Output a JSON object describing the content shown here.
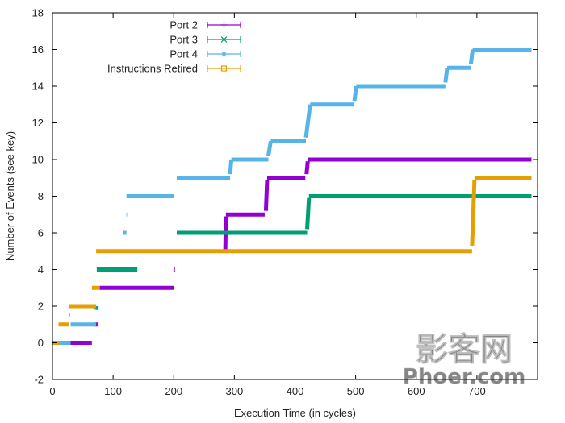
{
  "chart_data": {
    "type": "line",
    "xlabel": "Execution Time (in cycles)",
    "ylabel": "Number of Events (see key)",
    "xlim": [
      0,
      800
    ],
    "ylim": [
      -2,
      18
    ],
    "xticks": [
      0,
      100,
      200,
      300,
      400,
      500,
      600,
      700
    ],
    "yticks": [
      -2,
      0,
      2,
      4,
      6,
      8,
      10,
      12,
      14,
      16,
      18
    ],
    "grid": false,
    "legend_position": "top-center",
    "series": [
      {
        "name": "Port 2",
        "color": "#9400d3",
        "marker": "plus",
        "segments": [
          [
            [
              28,
              0
            ],
            [
              65,
              0
            ]
          ],
          [
            [
              68,
              1
            ],
            [
              75,
              1
            ]
          ],
          [
            [
              78,
              3
            ],
            [
              200,
              3
            ]
          ],
          [
            [
              200,
              4
            ],
            [
              202,
              4
            ]
          ],
          [
            [
              285,
              5
            ],
            [
              286,
              6.9
            ]
          ],
          [
            [
              286,
              7
            ],
            [
              350,
              7
            ]
          ],
          [
            [
              352,
              7.2
            ],
            [
              354,
              8.9
            ]
          ],
          [
            [
              354,
              9
            ],
            [
              417,
              9
            ]
          ],
          [
            [
              419,
              9.2
            ],
            [
              421,
              9.9
            ]
          ],
          [
            [
              421,
              10
            ],
            [
              790,
              10
            ]
          ]
        ]
      },
      {
        "name": "Port 3",
        "color": "#009e73",
        "marker": "cross",
        "segments": [
          [
            [
              72,
              1.8
            ],
            [
              73,
              2
            ]
          ],
          [
            [
              73,
              4
            ],
            [
              140,
              4
            ]
          ],
          [
            [
              205,
              6
            ],
            [
              420,
              6
            ]
          ],
          [
            [
              420,
              6.2
            ],
            [
              423,
              7.9
            ]
          ],
          [
            [
              423,
              8
            ],
            [
              790,
              8
            ]
          ]
        ]
      },
      {
        "name": "Port 4",
        "color": "#56b4e9",
        "marker": "star",
        "segments": [
          [
            [
              12,
              0
            ],
            [
              30,
              0
            ]
          ],
          [
            [
              30,
              1
            ],
            [
              72,
              1
            ]
          ],
          [
            [
              116,
              6
            ],
            [
              122,
              6
            ]
          ],
          [
            [
              122,
              7
            ],
            [
              123,
              7
            ]
          ],
          [
            [
              122,
              8
            ],
            [
              200,
              8
            ]
          ],
          [
            [
              205,
              9
            ],
            [
              293,
              9
            ]
          ],
          [
            [
              293,
              9.2
            ],
            [
              295,
              10
            ]
          ],
          [
            [
              295,
              10
            ],
            [
              356,
              10
            ]
          ],
          [
            [
              356,
              10.2
            ],
            [
              360,
              11
            ]
          ],
          [
            [
              360,
              11
            ],
            [
              418,
              11
            ]
          ],
          [
            [
              418,
              11.2
            ],
            [
              425,
              13
            ]
          ],
          [
            [
              425,
              13
            ],
            [
              498,
              13
            ]
          ],
          [
            [
              498,
              13.2
            ],
            [
              501,
              14
            ]
          ],
          [
            [
              501,
              14
            ],
            [
              648,
              14
            ]
          ],
          [
            [
              648,
              14.2
            ],
            [
              651,
              15
            ]
          ],
          [
            [
              651,
              15
            ],
            [
              690,
              15
            ]
          ],
          [
            [
              690,
              15.2
            ],
            [
              693,
              16
            ]
          ],
          [
            [
              693,
              16
            ],
            [
              790,
              16
            ]
          ]
        ]
      },
      {
        "name": "Instructions Retired",
        "color": "#e69f00",
        "marker": "square",
        "segments": [
          [
            [
              0,
              0
            ],
            [
              12,
              0
            ]
          ],
          [
            [
              10,
              1
            ],
            [
              28,
              1
            ]
          ],
          [
            [
              28,
              1.5
            ],
            [
              29,
              1.5
            ]
          ],
          [
            [
              28,
              2
            ],
            [
              72,
              2
            ]
          ],
          [
            [
              65,
              3
            ],
            [
              78,
              3
            ]
          ],
          [
            [
              72,
              5
            ],
            [
              692,
              5
            ]
          ],
          [
            [
              692,
              5.3
            ],
            [
              696,
              8.9
            ]
          ],
          [
            [
              696,
              9
            ],
            [
              790,
              9
            ]
          ]
        ]
      }
    ]
  },
  "watermark": {
    "line1": "影客网",
    "line2": "Phoer.com"
  }
}
